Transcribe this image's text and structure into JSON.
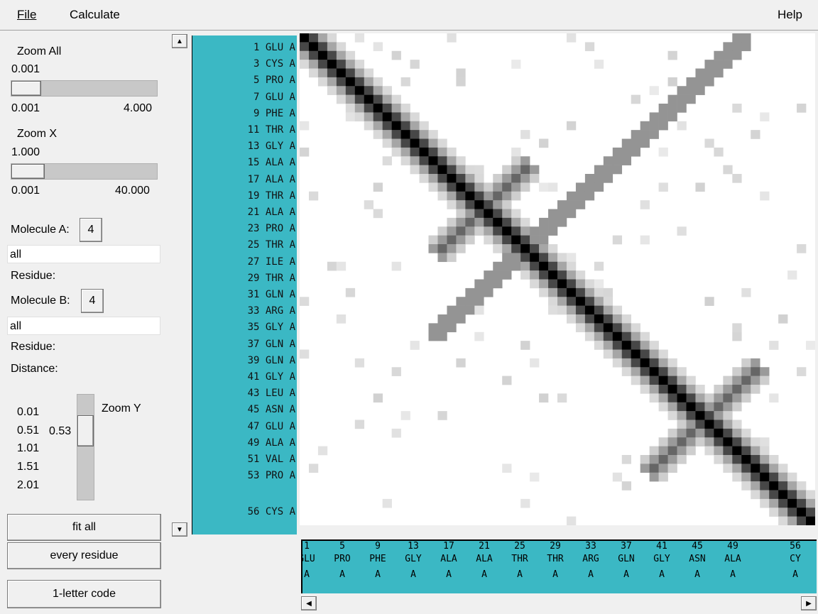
{
  "menu": {
    "file": "File",
    "calculate": "Calculate",
    "help": "Help"
  },
  "zoom_all": {
    "label": "Zoom All",
    "value": "0.001",
    "min": "0.001",
    "max": "4.000",
    "fraction": 0.0
  },
  "zoom_x": {
    "label": "Zoom X",
    "value": "1.000",
    "min": "0.001",
    "max": "40.000",
    "fraction": 0.025
  },
  "molecule_a": {
    "label": "Molecule A:",
    "number": "4",
    "field": "all",
    "residue_label": "Residue:"
  },
  "molecule_b": {
    "label": "Molecule B:",
    "number": "4",
    "field": "all",
    "residue_label": "Residue:"
  },
  "distance_label": "Distance:",
  "zoom_y": {
    "label": "Zoom Y",
    "value": "0.53",
    "ticks": [
      "0.01",
      "0.51",
      "1.01",
      "1.51",
      "2.01"
    ]
  },
  "buttons": {
    "fit_all": "fit all",
    "every_residue": "every residue",
    "one_letter": "1-letter code"
  },
  "row_labels": [
    "1 GLU A",
    "3 CYS A",
    "5 PRO A",
    "7 GLU A",
    "9 PHE A",
    "11 THR A",
    "13 GLY A",
    "15 ALA A",
    "17 ALA A",
    "19 THR A",
    "21 ALA A",
    "23 PRO A",
    "25 THR A",
    "27 ILE A",
    "29 THR A",
    "31 GLN A",
    "33 ARG A",
    "35 GLY A",
    "37 GLN A",
    "39 GLN A",
    "41 GLY A",
    "43 LEU A",
    "45 ASN A",
    "47 GLU A",
    "49 ALA A",
    "51 VAL A",
    "53 PRO A",
    "56 CYS A"
  ],
  "col_labels": [
    {
      "num": "1",
      "res": "GLU",
      "chain": "A"
    },
    {
      "num": "5",
      "res": "PRO",
      "chain": "A"
    },
    {
      "num": "9",
      "res": "PHE",
      "chain": "A"
    },
    {
      "num": "13",
      "res": "GLY",
      "chain": "A"
    },
    {
      "num": "17",
      "res": "ALA",
      "chain": "A"
    },
    {
      "num": "21",
      "res": "ALA",
      "chain": "A"
    },
    {
      "num": "25",
      "res": "THR",
      "chain": "A"
    },
    {
      "num": "29",
      "res": "THR",
      "chain": "A"
    },
    {
      "num": "33",
      "res": "ARG",
      "chain": "A"
    },
    {
      "num": "37",
      "res": "GLN",
      "chain": "A"
    },
    {
      "num": "41",
      "res": "GLY",
      "chain": "A"
    },
    {
      "num": "45",
      "res": "ASN",
      "chain": "A"
    },
    {
      "num": "49",
      "res": "ALA",
      "chain": "A"
    },
    {
      "num": "56",
      "res": "CY",
      "chain": "A"
    }
  ],
  "contact_map": {
    "residues": 56,
    "diagonal": true,
    "colors": {
      "bg": "#ffffff",
      "dark": "#000000",
      "teal": "#3bb8c4"
    }
  }
}
